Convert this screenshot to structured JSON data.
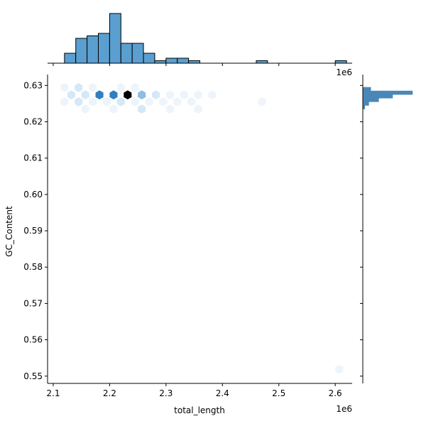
{
  "chart_data": {
    "type": "hexbin-joint",
    "xlabel": "total_length",
    "ylabel": "GC_Content",
    "x_offset_label": "1e6",
    "hist_offset_label": "1e6",
    "xlim": [
      2.09,
      2.63
    ],
    "ylim": [
      0.548,
      0.633
    ],
    "x_ticks": [
      2.1,
      2.2,
      2.3,
      2.4,
      2.5,
      2.6
    ],
    "x_tick_labels": [
      "2.1",
      "2.2",
      "2.3",
      "2.4",
      "2.5",
      "2.6"
    ],
    "y_ticks": [
      0.55,
      0.56,
      0.57,
      0.58,
      0.59,
      0.6,
      0.61,
      0.62,
      0.63
    ],
    "y_tick_labels": [
      "0.55",
      "0.56",
      "0.57",
      "0.58",
      "0.59",
      "0.60",
      "0.61",
      "0.62",
      "0.63"
    ],
    "colors": {
      "hist_fill": "#5a9fcf",
      "hist_edge": "#000000",
      "hex_max": "#000000",
      "hex_high": "#2f7fc1",
      "hex_mid": "#8cbde6",
      "hex_low": "#d6e8f7",
      "hex_faint": "#edf4fb",
      "right_hist": "#4a87b6"
    },
    "hexbins": [
      {
        "x": 2.12,
        "y": 0.6294,
        "count": 1
      },
      {
        "x": 2.145,
        "y": 0.6294,
        "count": 2
      },
      {
        "x": 2.17,
        "y": 0.6294,
        "count": 1
      },
      {
        "x": 2.22,
        "y": 0.6294,
        "count": 1
      },
      {
        "x": 2.245,
        "y": 0.6294,
        "count": 1
      },
      {
        "x": 2.132,
        "y": 0.6274,
        "count": 2
      },
      {
        "x": 2.157,
        "y": 0.6274,
        "count": 3
      },
      {
        "x": 2.182,
        "y": 0.6274,
        "count": 9
      },
      {
        "x": 2.207,
        "y": 0.6274,
        "count": 12
      },
      {
        "x": 2.232,
        "y": 0.6274,
        "count": 14
      },
      {
        "x": 2.257,
        "y": 0.6274,
        "count": 5
      },
      {
        "x": 2.282,
        "y": 0.6274,
        "count": 2
      },
      {
        "x": 2.307,
        "y": 0.6274,
        "count": 1
      },
      {
        "x": 2.332,
        "y": 0.6274,
        "count": 1
      },
      {
        "x": 2.357,
        "y": 0.6274,
        "count": 1
      },
      {
        "x": 2.382,
        "y": 0.6274,
        "count": 1
      },
      {
        "x": 2.12,
        "y": 0.6255,
        "count": 1
      },
      {
        "x": 2.145,
        "y": 0.6255,
        "count": 2
      },
      {
        "x": 2.17,
        "y": 0.6255,
        "count": 1
      },
      {
        "x": 2.195,
        "y": 0.6255,
        "count": 1
      },
      {
        "x": 2.22,
        "y": 0.6255,
        "count": 2
      },
      {
        "x": 2.245,
        "y": 0.6255,
        "count": 1
      },
      {
        "x": 2.27,
        "y": 0.6255,
        "count": 1
      },
      {
        "x": 2.295,
        "y": 0.6255,
        "count": 1
      },
      {
        "x": 2.32,
        "y": 0.6255,
        "count": 1
      },
      {
        "x": 2.345,
        "y": 0.6255,
        "count": 1
      },
      {
        "x": 2.47,
        "y": 0.6255,
        "count": 1
      },
      {
        "x": 2.157,
        "y": 0.6235,
        "count": 1
      },
      {
        "x": 2.207,
        "y": 0.6235,
        "count": 1
      },
      {
        "x": 2.257,
        "y": 0.6235,
        "count": 2
      },
      {
        "x": 2.307,
        "y": 0.6235,
        "count": 1
      },
      {
        "x": 2.357,
        "y": 0.6235,
        "count": 1
      },
      {
        "x": 2.607,
        "y": 0.5519,
        "count": 1
      }
    ],
    "x_hist": {
      "bin_edges": [
        2.12,
        2.14,
        2.16,
        2.18,
        2.2,
        2.22,
        2.24,
        2.26,
        2.28,
        2.3,
        2.32,
        2.34,
        2.36,
        2.38,
        2.4,
        2.42,
        2.44,
        2.46,
        2.48,
        2.5,
        2.52,
        2.54,
        2.56,
        2.58,
        2.6,
        2.62
      ],
      "counts": [
        4,
        10,
        11,
        12,
        20,
        8,
        8,
        4,
        1,
        2,
        2,
        1,
        0,
        0,
        0,
        0,
        0,
        1,
        0,
        0,
        0,
        0,
        0,
        0,
        1
      ]
    },
    "y_hist": {
      "bin_edges": [
        0.6235,
        0.6245,
        0.6255,
        0.6265,
        0.6275,
        0.6285,
        0.6295
      ],
      "counts": [
        1,
        3,
        8,
        15,
        25,
        4
      ]
    }
  }
}
